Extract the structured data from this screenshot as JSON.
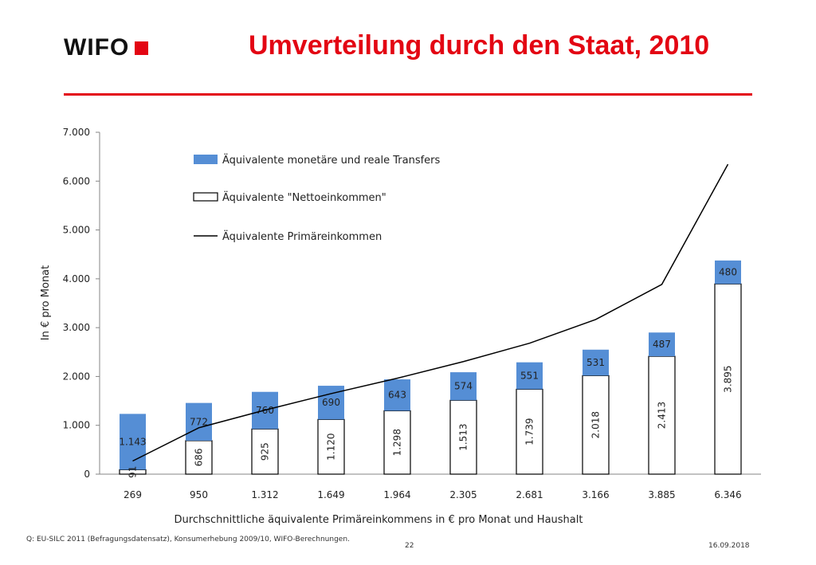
{
  "header": {
    "logo_text": "WIFO",
    "title": "Umverteilung durch den Staat, 2010",
    "accent_color": "#e30613"
  },
  "footer": {
    "source": "Q: EU-SILC 2011 (Befragungsdatensatz), Konsumerhebung 2009/10, WIFO-Berechnungen.",
    "page": "22",
    "date": "16.09.2018"
  },
  "chart_data": {
    "type": "bar",
    "stacked": true,
    "categories": [
      "269",
      "950",
      "1.312",
      "1.649",
      "1.964",
      "2.305",
      "2.681",
      "3.166",
      "3.885",
      "6.346"
    ],
    "xlabel": "Durchschnittliche äquivalente Primäreinkommens in € pro Monat und Haushalt",
    "ylabel": "In € pro Monat",
    "ylim": [
      0,
      7000
    ],
    "yticks": [
      0,
      1000,
      2000,
      3000,
      4000,
      5000,
      6000,
      7000
    ],
    "ytick_labels": [
      "0",
      "1.000",
      "2.000",
      "3.000",
      "4.000",
      "5.000",
      "6.000",
      "7.000"
    ],
    "grid": false,
    "legend_position": "top-left",
    "series": [
      {
        "name": "Äquivalente \"Nettoeinkommen\"",
        "kind": "bar",
        "color": "#ffffff",
        "edge_color": "#000000",
        "values": [
          91,
          686,
          925,
          1120,
          1298,
          1513,
          1739,
          2018,
          2413,
          3895
        ],
        "labels": [
          "91",
          "686",
          "925",
          "1.120",
          "1.298",
          "1.513",
          "1.739",
          "2.018",
          "2.413",
          "3.895"
        ]
      },
      {
        "name": "Äquivalente monetäre und reale Transfers",
        "kind": "bar",
        "color": "#558ed5",
        "values": [
          1143,
          772,
          760,
          690,
          643,
          574,
          551,
          531,
          487,
          480
        ],
        "labels": [
          "1.143",
          "772",
          "760",
          "690",
          "643",
          "574",
          "551",
          "531",
          "487",
          "480"
        ]
      },
      {
        "name": "Äquivalente Primäreinkommen",
        "kind": "line",
        "color": "#000000",
        "values": [
          269,
          950,
          1312,
          1649,
          1964,
          2305,
          2681,
          3166,
          3885,
          6346
        ]
      }
    ],
    "legend_order": [
      1,
      0,
      2
    ]
  }
}
